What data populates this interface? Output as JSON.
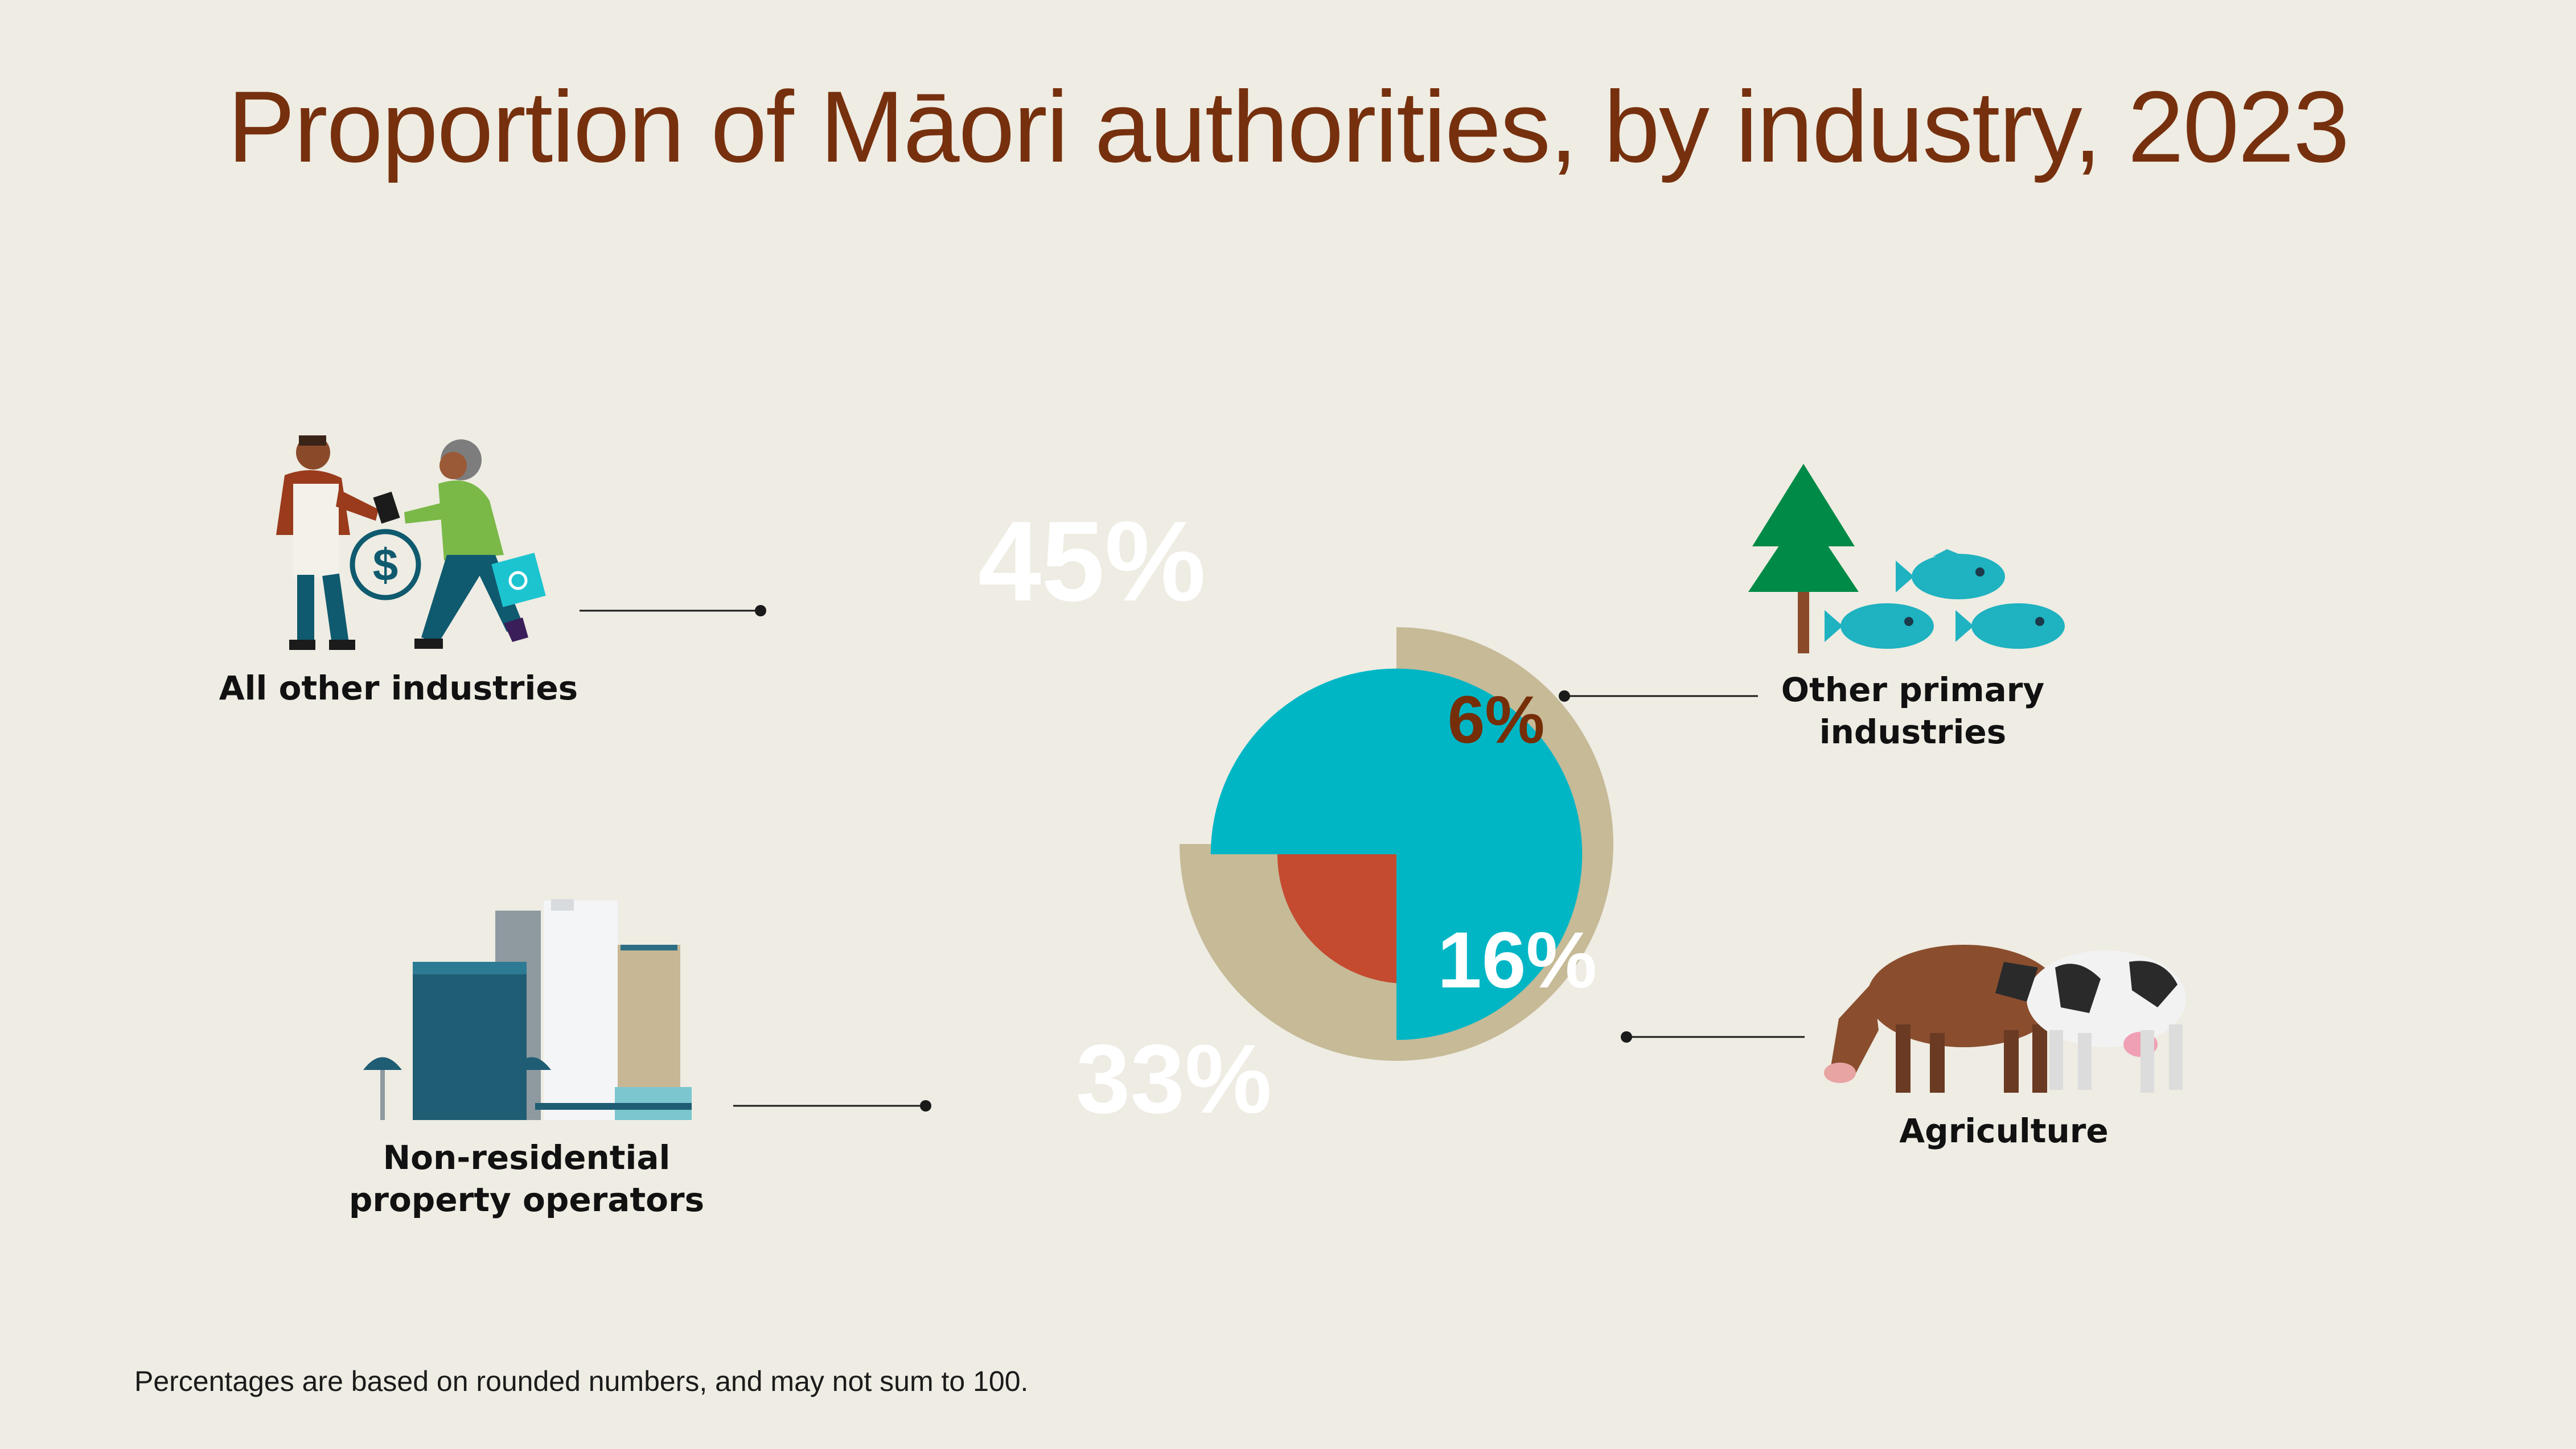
{
  "title": "Proportion of Māori authorities, by industry, 2023",
  "footnote": "Percentages are based on rounded numbers, and may not sum to 100.",
  "chart_data": {
    "type": "pie",
    "title": "Proportion of Māori authorities, by industry, 2023",
    "unit": "%",
    "slices": [
      {
        "category": "All other industries",
        "value": 45,
        "label": "45%",
        "color": "#c6ba97",
        "icon": "shop-handshake-icon"
      },
      {
        "category": "Other primary industries",
        "value": 6,
        "label": "6%",
        "color": "#752e07",
        "icon": "tree-and-fish-icon"
      },
      {
        "category": "Agriculture",
        "value": 16,
        "label": "16%",
        "color": "#c44b30",
        "icon": "cows-icon"
      },
      {
        "category": "Non-residential property operators",
        "value": 33,
        "label": "33%",
        "color": "#00b6c5",
        "icon": "office-buildings-icon"
      }
    ]
  },
  "labels": {
    "all_other": "All other industries",
    "other_primary_1": "Other primary",
    "other_primary_2": "industries",
    "agriculture": "Agriculture",
    "nonres_1": "Non-residential",
    "nonres_2": "property operators"
  }
}
